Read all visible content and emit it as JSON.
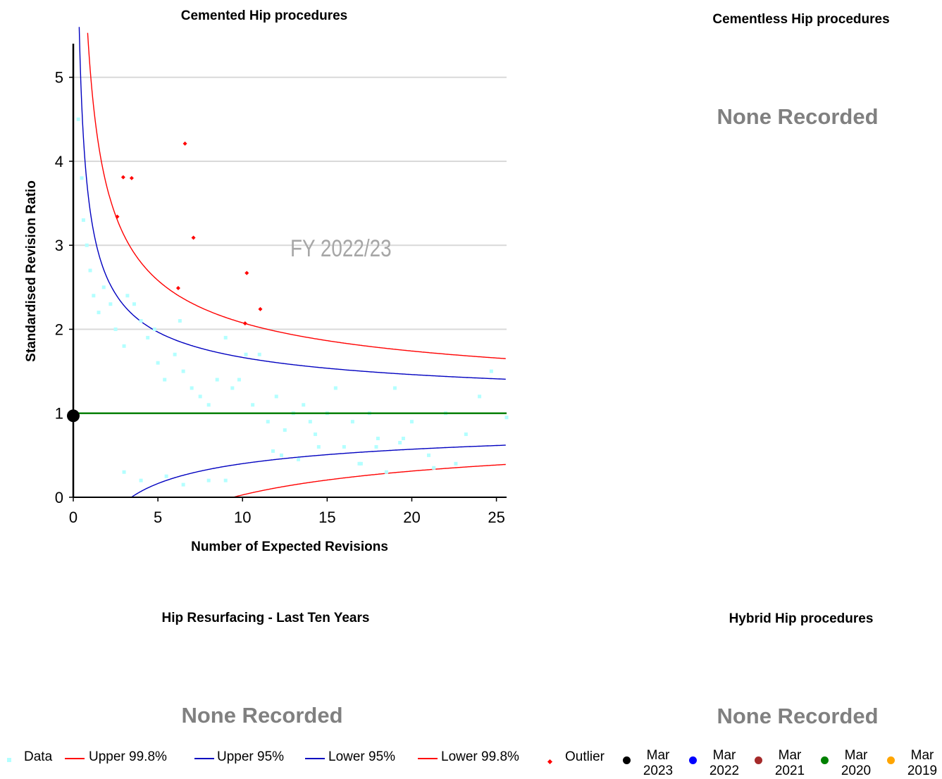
{
  "panels": {
    "cemented": {
      "title": "Cemented Hip procedures"
    },
    "cementless": {
      "title": "Cementless Hip procedures",
      "empty_text": "None Recorded"
    },
    "resurfacing": {
      "title": "Hip Resurfacing - Last Ten Years",
      "empty_text": "None Recorded"
    },
    "hybrid": {
      "title": "Hybrid Hip procedures",
      "empty_text": "None Recorded"
    }
  },
  "chart_data": {
    "type": "scatter",
    "title": "Cemented Hip procedures",
    "xlabel": "Number of Expected Revisions",
    "ylabel": "Standardised Revision Ratio",
    "watermark": "FY 2022/23",
    "xlim": [
      0,
      25.6
    ],
    "ylim": [
      0,
      5.4
    ],
    "xticks": [
      0,
      5,
      10,
      15,
      20,
      25
    ],
    "yticks": [
      0,
      1,
      2,
      3,
      4,
      5
    ],
    "grid": "horizontal",
    "reference_line": {
      "y": 1,
      "color": "#008000"
    },
    "series": [
      {
        "name": "Data",
        "kind": "points",
        "color": "#b3ffff",
        "points": [
          [
            0.3,
            4.5
          ],
          [
            0.5,
            3.8
          ],
          [
            0.6,
            3.3
          ],
          [
            0.8,
            3.0
          ],
          [
            1.0,
            2.7
          ],
          [
            1.2,
            2.4
          ],
          [
            1.5,
            2.2
          ],
          [
            1.8,
            2.5
          ],
          [
            2.2,
            2.3
          ],
          [
            2.5,
            2.0
          ],
          [
            3.0,
            1.8
          ],
          [
            3.2,
            2.4
          ],
          [
            3.6,
            2.3
          ],
          [
            4.0,
            2.1
          ],
          [
            4.4,
            1.9
          ],
          [
            4.8,
            2.0
          ],
          [
            5.0,
            1.6
          ],
          [
            5.4,
            1.4
          ],
          [
            6.0,
            1.7
          ],
          [
            6.3,
            2.1
          ],
          [
            6.5,
            1.5
          ],
          [
            7.0,
            1.3
          ],
          [
            7.5,
            1.2
          ],
          [
            8.0,
            1.1
          ],
          [
            8.5,
            1.4
          ],
          [
            9.0,
            1.9
          ],
          [
            9.4,
            1.3
          ],
          [
            9.8,
            1.4
          ],
          [
            10.2,
            1.7
          ],
          [
            10.6,
            1.1
          ],
          [
            11.0,
            1.7
          ],
          [
            11.5,
            0.9
          ],
          [
            12.0,
            1.2
          ],
          [
            12.5,
            0.8
          ],
          [
            13.0,
            1.0
          ],
          [
            13.6,
            1.1
          ],
          [
            14.0,
            0.9
          ],
          [
            14.5,
            0.6
          ],
          [
            15.0,
            1.0
          ],
          [
            15.5,
            1.3
          ],
          [
            16.0,
            0.6
          ],
          [
            16.5,
            0.9
          ],
          [
            17.0,
            0.4
          ],
          [
            17.5,
            1.0
          ],
          [
            18.0,
            0.7
          ],
          [
            18.5,
            0.3
          ],
          [
            19.0,
            1.3
          ],
          [
            19.5,
            0.7
          ],
          [
            20.0,
            0.9
          ],
          [
            21.0,
            0.5
          ],
          [
            22.0,
            1.0
          ],
          [
            23.2,
            0.75
          ],
          [
            24.0,
            1.2
          ],
          [
            24.7,
            1.5
          ],
          [
            25.6,
            0.95
          ],
          [
            3.0,
            0.3
          ],
          [
            4.0,
            0.2
          ],
          [
            5.5,
            0.25
          ],
          [
            6.5,
            0.15
          ],
          [
            8.0,
            0.2
          ],
          [
            9.0,
            0.2
          ],
          [
            11.8,
            0.55
          ],
          [
            12.3,
            0.5
          ],
          [
            13.3,
            0.45
          ],
          [
            14.3,
            0.75
          ],
          [
            16.9,
            0.4
          ],
          [
            17.9,
            0.6
          ],
          [
            19.3,
            0.65
          ],
          [
            21.3,
            0.35
          ],
          [
            22.6,
            0.4
          ]
        ]
      },
      {
        "name": "Upper 99.8%",
        "kind": "line",
        "color": "#ff0000"
      },
      {
        "name": "Upper 95%",
        "kind": "line",
        "color": "#0000c0"
      },
      {
        "name": "Lower 95%",
        "kind": "line",
        "color": "#0000c0"
      },
      {
        "name": "Lower 99.8%",
        "kind": "line",
        "color": "#ff0000"
      },
      {
        "name": "Outlier",
        "kind": "points",
        "color": "#ff0000",
        "points": [
          [
            6.6,
            4.21
          ],
          [
            2.95,
            3.81
          ],
          [
            3.45,
            3.8
          ],
          [
            2.6,
            3.34
          ],
          [
            7.1,
            3.09
          ],
          [
            10.25,
            2.67
          ],
          [
            6.2,
            2.49
          ],
          [
            11.05,
            2.24
          ],
          [
            10.15,
            2.07
          ]
        ]
      },
      {
        "name": "Mar 2023",
        "kind": "marker",
        "color": "#000000",
        "points": [
          [
            0,
            0.97
          ]
        ]
      }
    ],
    "legend": {
      "position": "bottom",
      "items": [
        {
          "label": "Data",
          "symbol": "square",
          "color": "#b3ffff"
        },
        {
          "label": "Upper 99.8%",
          "symbol": "line",
          "color": "#ff0000"
        },
        {
          "label": "Upper 95%",
          "symbol": "line",
          "color": "#0000c0"
        },
        {
          "label": "Lower 95%",
          "symbol": "line",
          "color": "#0000c0"
        },
        {
          "label": "Lower 99.8%",
          "symbol": "line",
          "color": "#ff0000"
        },
        {
          "label": "Outlier",
          "symbol": "diamond",
          "color": "#ff0000"
        },
        {
          "label_top": "Mar",
          "label_bottom": "2023",
          "symbol": "dot",
          "color": "#000000"
        },
        {
          "label_top": "Mar",
          "label_bottom": "2022",
          "symbol": "dot",
          "color": "#0000ff"
        },
        {
          "label_top": "Mar",
          "label_bottom": "2021",
          "symbol": "dot",
          "color": "#a52a2a"
        },
        {
          "label_top": "Mar",
          "label_bottom": "2020",
          "symbol": "dot",
          "color": "#008000"
        },
        {
          "label_top": "Mar",
          "label_bottom": "2019",
          "symbol": "dot",
          "color": "#ffa500"
        }
      ]
    }
  }
}
